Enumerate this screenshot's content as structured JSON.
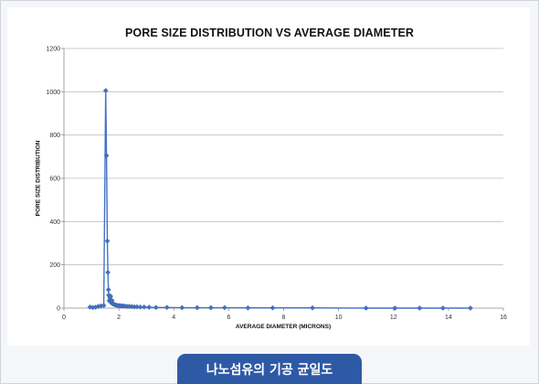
{
  "caption": "나노섬유의 기공 균일도",
  "chart_data": {
    "type": "scatter",
    "title": "PORE SIZE DISTRIBUTION VS AVERAGE DIAMETER",
    "xlabel": "AVERAGE DIAMETER (MICRONS)",
    "ylabel": "PORE SIZE DISTRIBUTION",
    "xlim": [
      0,
      16
    ],
    "ylim": [
      0,
      1200
    ],
    "xticks": [
      0,
      2,
      4,
      6,
      8,
      10,
      12,
      14,
      16
    ],
    "yticks": [
      0,
      200,
      400,
      600,
      800,
      1000,
      1200
    ],
    "grid": true,
    "legend": "none",
    "color": "#4472c4",
    "lines": true,
    "series": [
      {
        "x": [
          0.95,
          1.05,
          1.15,
          1.25,
          1.35,
          1.45,
          1.52,
          1.55,
          1.58,
          1.6,
          1.62,
          1.63,
          1.65,
          1.67,
          1.68,
          1.7,
          1.72,
          1.75,
          1.78,
          1.82,
          1.86,
          1.9,
          1.95,
          2.0,
          2.05,
          2.1,
          2.16,
          2.22,
          2.3,
          2.38,
          2.47,
          2.56,
          2.66,
          2.78,
          2.92,
          3.1,
          3.35,
          3.75,
          4.3,
          4.85,
          5.35,
          5.85,
          6.7,
          7.6,
          9.05,
          11.0,
          12.05,
          12.95,
          13.8,
          14.8
        ],
        "y": [
          5,
          3,
          4,
          8,
          10,
          12,
          1005,
          705,
          310,
          165,
          85,
          60,
          35,
          50,
          30,
          55,
          25,
          35,
          20,
          18,
          15,
          14,
          12,
          12,
          11,
          10,
          10,
          9,
          8,
          8,
          7,
          6,
          6,
          5,
          5,
          4,
          3,
          3,
          2,
          2,
          2,
          2,
          1,
          1,
          1,
          0,
          0,
          0,
          0,
          0
        ]
      }
    ]
  }
}
